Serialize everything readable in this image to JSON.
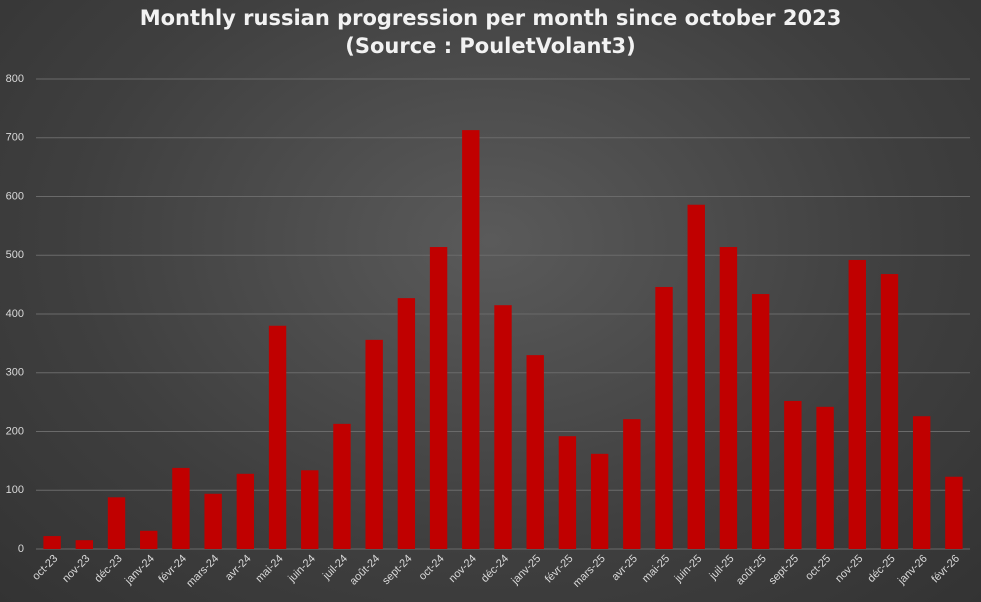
{
  "chart_data": {
    "type": "bar",
    "title": "Monthly russian progression per month since october 2023 (Source : PouletVolant3)",
    "categories": [
      "oct-23",
      "nov-23",
      "déc-23",
      "janv-24",
      "févr-24",
      "mars-24",
      "avr-24",
      "mai-24",
      "juin-24",
      "juil-24",
      "août-24",
      "sept-24",
      "oct-24",
      "nov-24",
      "déc-24",
      "janv-25",
      "févr-25",
      "mars-25",
      "avr-25",
      "mai-25",
      "juin-25",
      "juil-25",
      "août-25",
      "sept-25",
      "oct-25",
      "nov-25",
      "déc-25",
      "janv-26",
      "févr-26"
    ],
    "values": [
      22,
      15,
      88,
      31,
      138,
      94,
      128,
      380,
      134,
      213,
      356,
      427,
      514,
      713,
      415,
      330,
      192,
      162,
      221,
      446,
      586,
      514,
      434,
      252,
      242,
      492,
      468,
      226,
      123
    ],
    "color": "#c00000",
    "ylim": [
      0,
      800
    ],
    "yticks": [
      0,
      100,
      200,
      300,
      400,
      500,
      600,
      700,
      800
    ],
    "grid": true
  }
}
